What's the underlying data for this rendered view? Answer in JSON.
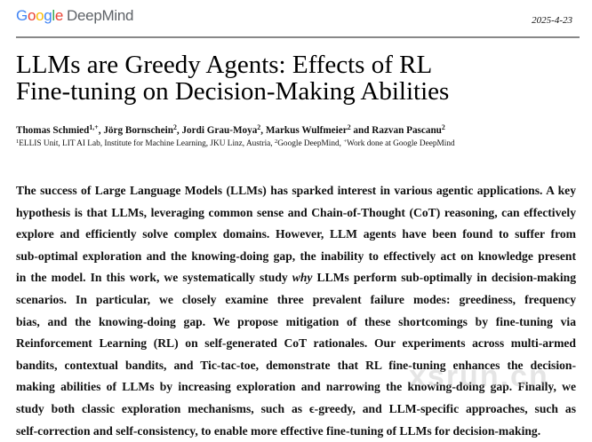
{
  "header": {
    "logo_google": [
      "G",
      "o",
      "o",
      "g",
      "l",
      "e"
    ],
    "logo_text": "DeepMind",
    "date": "2025-4-23"
  },
  "title_lines": [
    "LLMs are Greedy Agents: Effects of RL",
    "Fine-tuning on Decision-Making Abilities"
  ],
  "authors": [
    {
      "name": "Thomas Schmied",
      "sup": "1,+"
    },
    {
      "name": "Jörg Bornschein",
      "sup": "2"
    },
    {
      "name": "Jordi Grau-Moya",
      "sup": "2"
    },
    {
      "name": "Markus Wulfmeier",
      "sup": "2"
    },
    {
      "name": "Razvan Pascanu",
      "sup": "2"
    }
  ],
  "authors_sep": ", ",
  "authors_and": " and ",
  "affiliations": [
    {
      "sup": "1",
      "text": "ELLIS Unit, LIT AI Lab, Institute for Machine Learning, JKU Linz, Austria, "
    },
    {
      "sup": "2",
      "text": "Google DeepMind, "
    },
    {
      "sup": "+",
      "text": "Work done at Google DeepMind"
    }
  ],
  "abstract_lines": [
    "The success of Large Language Models (LLMs) has sparked interest in various agentic applications. A key",
    "hypothesis is that LLMs, leveraging common sense and Chain-of-Thought (CoT) reasoning, can effectively",
    "explore and efficiently solve complex domains. However, LLM agents have been found to suffer from",
    "sub-optimal exploration and the knowing-doing gap, the inability to effectively act on knowledge present",
    "in the model. In this work, we systematically study |why| LLMs perform sub-optimally in decision-making",
    "scenarios.  In particular, we closely examine three prevalent failure modes: greediness, frequency",
    "bias, and the knowing-doing gap.  We propose mitigation of these shortcomings by fine-tuning via",
    "Reinforcement Learning (RL) on self-generated CoT rationales. Our experiments across multi-armed",
    "bandits, contextual bandits, and Tic-tac-toe, demonstrate that RL fine-tuning enhances the decision-",
    "making abilities of LLMs by increasing exploration and narrowing the knowing-doing gap. Finally, we",
    "study both classic exploration mechanisms, such as ϵ-greedy, and LLM-specific approaches, such as",
    "self-correction and self-consistency, to enable more effective fine-tuning of LLMs for decision-making."
  ],
  "watermark": "xsrun.cn"
}
